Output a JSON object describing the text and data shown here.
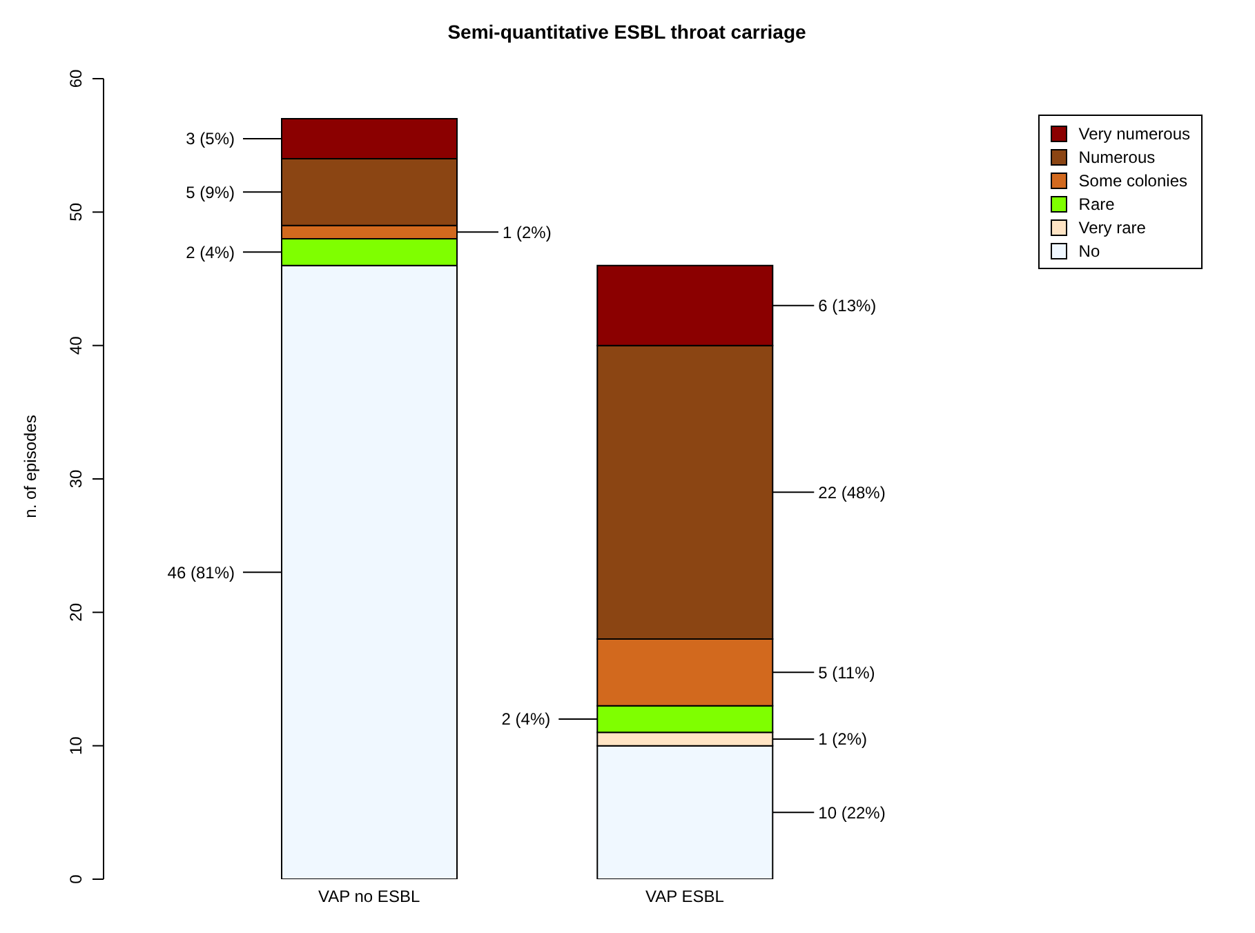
{
  "chart_data": {
    "type": "bar",
    "title": "Semi-quantitative ESBL throat carriage",
    "ylabel": "n. of episodes",
    "categories": [
      "VAP no ESBL",
      "VAP ESBL"
    ],
    "stacked": true,
    "ylim": [
      0,
      60
    ],
    "yticks": [
      0,
      10,
      20,
      30,
      40,
      50,
      60
    ],
    "legend": "top right",
    "series": [
      {
        "name": "No",
        "color": "#f0f8ff",
        "values": [
          46,
          10
        ],
        "value_labels": [
          "46 (81%)",
          "10 (22%)"
        ]
      },
      {
        "name": "Very rare",
        "color": "#ffe4c4",
        "values": [
          0,
          1
        ],
        "value_labels": [
          null,
          "1 (2%)"
        ]
      },
      {
        "name": "Rare",
        "color": "#7fff00",
        "values": [
          2,
          2
        ],
        "value_labels": [
          "2 (4%)",
          "2 (4%)"
        ]
      },
      {
        "name": "Some colonies",
        "color": "#d2691e",
        "values": [
          1,
          5
        ],
        "value_labels": [
          "1 (2%)",
          "5 (11%)"
        ]
      },
      {
        "name": "Numerous",
        "color": "#8b4513",
        "values": [
          5,
          22
        ],
        "value_labels": [
          "5 (9%)",
          "22 (48%)"
        ]
      },
      {
        "name": "Very numerous",
        "color": "#8b0000",
        "values": [
          3,
          6
        ],
        "value_labels": [
          "3 (5%)",
          "6 (13%)"
        ]
      }
    ]
  }
}
